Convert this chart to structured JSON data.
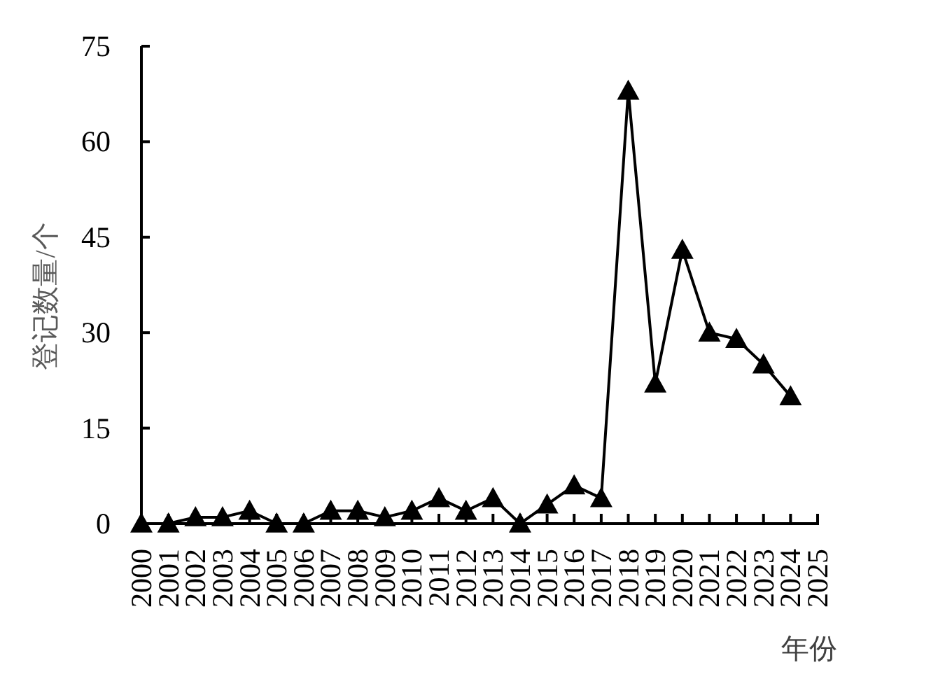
{
  "chart_data": {
    "type": "line",
    "xlabel": "年份",
    "ylabel": "登记数量/个",
    "categories": [
      "2000",
      "2001",
      "2002",
      "2003",
      "2004",
      "2005",
      "2006",
      "2007",
      "2008",
      "2009",
      "2010",
      "2011",
      "2012",
      "2013",
      "2014",
      "2015",
      "2016",
      "2017",
      "2018",
      "2019",
      "2020",
      "2021",
      "2022",
      "2023",
      "2024",
      "2025"
    ],
    "series": [
      {
        "color": "#000000",
        "values": [
          0,
          0,
          1,
          1,
          2,
          0,
          0,
          2,
          2,
          1,
          2,
          4,
          2,
          4,
          0,
          3,
          6,
          4,
          68,
          22,
          43,
          30,
          29,
          25,
          20,
          null
        ]
      }
    ],
    "ylim": [
      0,
      75
    ],
    "yticks": [
      0,
      15,
      30,
      45,
      60,
      75
    ],
    "marker": "triangle",
    "line_style": "solid",
    "grid": false
  }
}
